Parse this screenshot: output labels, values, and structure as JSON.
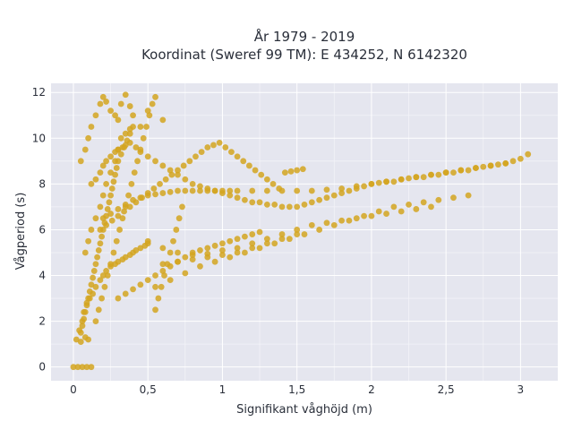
{
  "chart_data": {
    "type": "scatter",
    "title_line1": "År 1979 - 2019",
    "title_line2": "Koordinat (Sweref 99 TM): E 434252, N 6142320",
    "xlabel": "Signifikant våghöjd (m)",
    "ylabel": "Vågperiod (s)",
    "xlim": [
      -0.15,
      3.25
    ],
    "ylim": [
      -0.6,
      12.4
    ],
    "xticks": [
      0,
      0.5,
      1,
      1.5,
      2,
      2.5,
      3
    ],
    "xtick_labels": [
      "0",
      "0,5",
      "1",
      "1,5",
      "2",
      "2,5",
      "3"
    ],
    "yticks": [
      0,
      2,
      4,
      6,
      8,
      10,
      12
    ],
    "ytick_labels": [
      "0",
      "2",
      "4",
      "6",
      "8",
      "10",
      "12"
    ],
    "grid": true,
    "marker_color": "#D4A520",
    "plot_bg": "#E5E6EF",
    "series": [
      {
        "x": [
          0.0,
          0.03,
          0.06,
          0.09,
          0.12,
          0.02,
          0.05,
          0.08,
          0.1,
          0.04,
          0.06,
          0.07,
          0.09,
          0.11,
          0.13,
          0.15,
          0.18,
          0.2,
          0.22,
          0.25,
          0.28,
          0.3,
          0.33,
          0.35,
          0.38,
          0.4,
          0.42,
          0.45,
          0.48,
          0.5,
          0.05,
          0.08,
          0.1,
          0.12,
          0.15,
          0.18,
          0.2,
          0.22,
          0.25,
          0.28,
          0.3,
          0.32,
          0.35,
          0.38,
          0.4,
          0.45,
          0.5,
          0.55,
          0.6,
          0.12,
          0.15,
          0.18,
          0.2,
          0.22,
          0.25,
          0.28,
          0.3,
          0.33,
          0.35,
          0.38,
          0.42,
          0.45,
          0.5,
          0.55,
          0.6,
          0.65,
          0.7,
          0.75,
          0.8,
          0.85,
          0.9,
          0.95,
          1.0,
          1.05,
          1.1,
          1.15,
          1.2,
          1.25,
          1.3,
          1.35,
          1.4,
          1.45,
          1.5,
          1.55,
          1.6,
          1.65,
          1.7,
          1.75,
          1.8,
          1.85,
          1.9,
          1.95,
          2.0,
          2.05,
          2.1,
          2.15,
          2.2,
          2.25,
          2.3,
          2.35,
          2.4,
          2.45,
          2.5,
          2.55,
          2.6,
          2.65,
          2.7,
          2.75,
          2.8,
          2.85,
          2.9,
          2.95,
          3.0,
          3.05,
          0.5,
          0.6,
          0.7,
          0.8,
          0.9,
          1.0,
          1.1,
          1.2,
          1.3,
          1.4,
          1.5,
          1.6,
          1.7,
          1.8,
          1.9,
          2.0,
          2.1,
          2.2,
          2.3,
          2.4,
          0.55,
          0.65,
          0.75,
          0.85,
          0.95,
          1.05,
          1.15,
          1.25,
          1.35,
          1.45,
          1.55,
          1.65,
          1.75,
          1.85,
          1.95,
          2.05,
          2.15,
          2.25,
          2.35,
          2.45,
          2.55,
          2.65,
          0.08,
          0.1,
          0.12,
          0.15,
          0.18,
          0.2,
          0.22,
          0.25,
          0.28,
          0.3,
          0.32,
          0.35,
          0.38,
          0.4,
          0.18,
          0.22,
          0.26,
          0.3,
          0.34,
          0.38,
          0.42,
          0.46,
          0.5,
          0.54,
          0.58,
          0.62,
          0.66,
          0.7,
          0.74,
          0.78,
          0.82,
          0.86,
          0.9,
          0.94,
          0.98,
          1.02,
          1.06,
          1.1,
          1.14,
          1.18,
          1.22,
          1.26,
          1.3,
          1.34,
          1.38,
          1.42,
          1.46,
          1.5,
          1.54,
          0.6,
          0.7,
          0.8,
          0.9,
          1.0,
          1.1,
          1.2,
          1.3,
          1.4,
          1.5,
          0.3,
          0.35,
          0.4,
          0.45,
          0.5,
          0.55,
          0.6,
          0.65,
          0.7,
          0.75,
          0.8,
          0.85,
          0.9,
          0.95,
          1.0,
          1.05,
          1.1,
          1.15,
          1.2,
          1.25,
          0.05,
          0.06,
          0.07,
          0.08,
          0.09,
          0.1,
          0.11,
          0.12,
          0.13,
          0.14,
          0.15,
          0.16,
          0.17,
          0.18,
          0.19,
          0.2,
          0.21,
          0.22,
          0.23,
          0.24,
          0.25,
          0.26,
          0.27,
          0.28,
          0.29,
          0.3,
          0.32,
          0.34,
          0.36,
          0.38,
          0.2,
          0.25,
          0.3,
          0.35,
          0.4,
          0.45,
          0.5,
          0.55,
          0.6,
          0.65,
          0.7,
          0.75,
          0.8,
          0.85,
          0.9,
          0.95,
          1.0,
          1.05,
          1.1,
          1.2,
          1.3,
          1.4,
          1.5,
          1.6,
          1.7,
          1.8,
          1.9,
          2.0,
          2.1,
          2.2,
          2.3,
          2.4,
          2.5,
          2.6,
          2.7,
          2.8,
          2.9,
          0.15,
          0.17,
          0.19,
          0.21,
          0.23,
          0.25,
          0.27,
          0.29,
          0.31,
          0.33,
          0.35,
          0.37,
          0.39,
          0.41,
          0.43,
          0.45,
          0.47,
          0.49,
          0.51,
          0.53,
          0.55,
          0.57,
          0.59,
          0.61,
          0.63,
          0.65,
          0.67,
          0.69,
          0.71,
          0.73
        ],
        "y": [
          0.0,
          0.0,
          0.0,
          0.0,
          0.0,
          1.2,
          1.1,
          1.3,
          1.2,
          1.6,
          2.0,
          2.4,
          2.8,
          3.0,
          3.2,
          3.5,
          3.8,
          4.0,
          4.2,
          4.4,
          4.5,
          4.6,
          4.7,
          4.8,
          4.9,
          5.0,
          5.1,
          5.2,
          5.3,
          5.4,
          9.0,
          9.5,
          10.0,
          10.5,
          11.0,
          11.5,
          11.8,
          11.6,
          11.2,
          11.0,
          10.8,
          11.5,
          11.9,
          11.4,
          11.0,
          10.5,
          11.2,
          11.8,
          10.8,
          8.0,
          8.2,
          8.5,
          8.8,
          9.0,
          9.2,
          9.4,
          9.5,
          9.6,
          9.7,
          9.8,
          9.6,
          9.4,
          9.2,
          9.0,
          8.8,
          8.6,
          8.4,
          8.2,
          8.0,
          7.9,
          7.8,
          7.7,
          7.6,
          7.5,
          7.4,
          7.3,
          7.2,
          7.2,
          7.1,
          7.1,
          7.0,
          7.0,
          7.0,
          7.1,
          7.2,
          7.3,
          7.4,
          7.5,
          7.6,
          7.7,
          7.8,
          7.9,
          8.0,
          8.05,
          8.1,
          8.1,
          8.2,
          8.25,
          8.3,
          8.3,
          8.4,
          8.4,
          8.5,
          8.5,
          8.6,
          8.6,
          8.7,
          8.75,
          8.8,
          8.85,
          8.9,
          9.0,
          9.1,
          9.3,
          5.5,
          5.2,
          5.0,
          4.9,
          4.95,
          5.1,
          5.2,
          5.4,
          5.6,
          5.8,
          6.0,
          6.2,
          6.3,
          6.4,
          6.5,
          6.6,
          6.7,
          6.8,
          6.9,
          7.0,
          3.5,
          3.8,
          4.1,
          4.4,
          4.6,
          4.8,
          5.0,
          5.2,
          5.4,
          5.6,
          5.8,
          6.0,
          6.2,
          6.4,
          6.6,
          6.8,
          7.0,
          7.1,
          7.2,
          7.3,
          7.4,
          7.5,
          5.0,
          5.5,
          6.0,
          6.5,
          7.0,
          7.5,
          8.0,
          8.5,
          9.0,
          9.5,
          10.0,
          10.2,
          10.4,
          10.5,
          6.0,
          6.2,
          6.4,
          6.6,
          6.8,
          7.0,
          7.2,
          7.4,
          7.6,
          7.8,
          8.0,
          8.2,
          8.4,
          8.6,
          8.8,
          9.0,
          9.2,
          9.4,
          9.6,
          9.7,
          9.8,
          9.6,
          9.4,
          9.2,
          9.0,
          8.8,
          8.6,
          8.4,
          8.2,
          8.0,
          7.8,
          8.5,
          8.55,
          8.6,
          8.65,
          4.5,
          4.6,
          4.7,
          4.8,
          4.9,
          5.0,
          5.2,
          5.4,
          5.6,
          5.8,
          3.0,
          3.2,
          3.4,
          3.6,
          3.8,
          4.0,
          4.2,
          4.4,
          4.6,
          4.8,
          5.0,
          5.1,
          5.2,
          5.3,
          5.4,
          5.5,
          5.6,
          5.7,
          5.8,
          5.9,
          1.5,
          1.8,
          2.1,
          2.4,
          2.7,
          3.0,
          3.3,
          3.6,
          3.9,
          4.2,
          4.5,
          4.8,
          5.1,
          5.4,
          5.7,
          6.0,
          6.3,
          6.6,
          6.9,
          7.2,
          7.5,
          7.8,
          8.1,
          8.4,
          8.7,
          9.0,
          9.3,
          9.6,
          9.9,
          10.2,
          6.5,
          6.7,
          6.9,
          7.1,
          7.3,
          7.4,
          7.5,
          7.55,
          7.6,
          7.65,
          7.7,
          7.7,
          7.7,
          7.7,
          7.7,
          7.7,
          7.7,
          7.7,
          7.7,
          7.7,
          7.7,
          7.7,
          7.7,
          7.7,
          7.75,
          7.8,
          7.9,
          8.0,
          8.1,
          8.2,
          8.3,
          8.4,
          8.5,
          8.6,
          8.7,
          8.8,
          8.9,
          2.0,
          2.5,
          3.0,
          3.5,
          4.0,
          4.5,
          5.0,
          5.5,
          6.0,
          6.5,
          7.0,
          7.5,
          8.0,
          8.5,
          9.0,
          9.5,
          10.0,
          10.5,
          11.0,
          11.5,
          2.5,
          3.0,
          3.5,
          4.0,
          4.5,
          5.0,
          5.5,
          6.0,
          6.5,
          7.0
        ]
      }
    ]
  }
}
